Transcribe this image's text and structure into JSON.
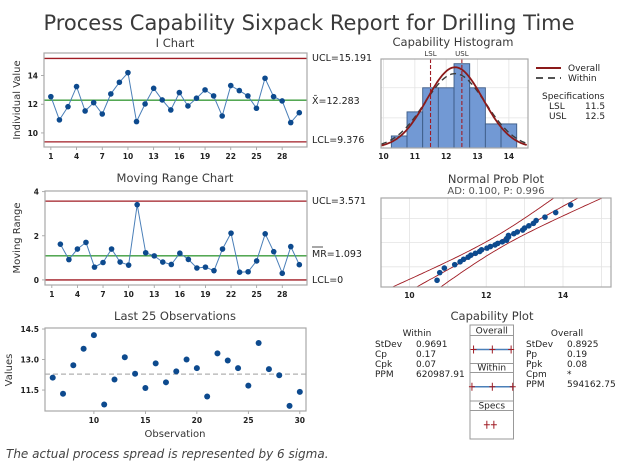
{
  "title": "Process Capability Sixpack Report for Drilling Time",
  "footnote": "The actual process spread is represented by 6 sigma.",
  "colors": {
    "point": "#0d4a8e",
    "connector": "#4a7fb8",
    "center_line": "#3b9b3b",
    "control_limit": "#a01c24",
    "hist_bar": "#7299d4",
    "hist_edge": "#3d5b86",
    "overall_curve": "#8b1a1a",
    "within_curve": "#3c3c3c",
    "spec_line": "#a01c24",
    "ref_line": "#b0b0b0"
  },
  "chart_data": [
    {
      "id": "i_chart",
      "type": "line",
      "title": "I Chart",
      "xlabel": "",
      "ylabel": "Individual Value",
      "x": [
        1,
        2,
        3,
        4,
        5,
        6,
        7,
        8,
        9,
        10,
        11,
        12,
        13,
        14,
        15,
        16,
        17,
        18,
        19,
        20,
        21,
        22,
        23,
        24,
        25,
        26,
        27,
        28,
        29,
        30
      ],
      "values": [
        12.53,
        10.91,
        11.83,
        13.23,
        11.53,
        12.11,
        11.32,
        12.72,
        13.53,
        14.2,
        10.79,
        12.02,
        13.11,
        12.3,
        11.6,
        12.81,
        11.88,
        12.42,
        13.0,
        12.58,
        11.18,
        13.3,
        12.95,
        12.58,
        11.72,
        13.81,
        12.53,
        12.23,
        10.72,
        11.41
      ],
      "xticks": [
        1,
        4,
        7,
        10,
        13,
        16,
        19,
        22,
        25,
        28
      ],
      "yticks": [
        10,
        12,
        14
      ],
      "xlim": [
        0.2,
        30.9
      ],
      "ylim": [
        9.02,
        15.57
      ],
      "ucl": 15.191,
      "center": 12.283,
      "lcl": 9.376,
      "ucl_label": "UCL=15.191",
      "center_label": "X̄=12.283",
      "lcl_label": "LCL=9.376"
    },
    {
      "id": "mr_chart",
      "type": "line",
      "title": "Moving Range Chart",
      "xlabel": "",
      "ylabel": "Moving Range",
      "x": [
        2,
        3,
        4,
        5,
        6,
        7,
        8,
        9,
        10,
        11,
        12,
        13,
        14,
        15,
        16,
        17,
        18,
        19,
        20,
        21,
        22,
        23,
        24,
        25,
        26,
        27,
        28,
        29,
        30
      ],
      "values": [
        1.62,
        0.92,
        1.4,
        1.7,
        0.58,
        0.79,
        1.4,
        0.81,
        0.67,
        3.41,
        1.23,
        1.09,
        0.81,
        0.7,
        1.21,
        0.93,
        0.54,
        0.58,
        0.42,
        1.4,
        2.12,
        0.35,
        0.37,
        0.86,
        2.09,
        1.28,
        0.3,
        1.51,
        0.69
      ],
      "xticks": [
        1,
        4,
        7,
        10,
        13,
        16,
        19,
        22,
        25,
        28
      ],
      "yticks": [
        0,
        2,
        4
      ],
      "xlim": [
        0.2,
        30.9
      ],
      "ylim": [
        -0.23,
        4.03
      ],
      "ucl": 3.571,
      "center": 1.093,
      "lcl": 0,
      "ucl_label": "UCL=3.571",
      "center_label": "MR=1.093",
      "lcl_label": "LCL=0"
    },
    {
      "id": "last25",
      "type": "scatter",
      "title": "Last 25 Observations",
      "xlabel": "Observation",
      "ylabel": "Values",
      "x": [
        6,
        7,
        8,
        9,
        10,
        11,
        12,
        13,
        14,
        15,
        16,
        17,
        18,
        19,
        20,
        21,
        22,
        23,
        24,
        25,
        26,
        27,
        28,
        29,
        30
      ],
      "values": [
        12.11,
        11.32,
        12.72,
        13.53,
        14.2,
        10.79,
        12.02,
        13.11,
        12.3,
        11.6,
        12.81,
        11.88,
        12.42,
        13.0,
        12.58,
        11.18,
        13.3,
        12.95,
        12.58,
        11.72,
        13.81,
        12.53,
        12.23,
        10.72,
        11.41
      ],
      "reference_line": 12.283,
      "xticks": [
        10,
        15,
        20,
        25,
        30
      ],
      "yticks": [
        11.5,
        13.0,
        14.5
      ],
      "ytick_labels": [
        "11.5",
        "13.0",
        "14.5"
      ],
      "xlim": [
        5.25,
        30.6
      ],
      "ylim": [
        10.47,
        14.55
      ]
    },
    {
      "id": "histogram",
      "type": "bar",
      "title": "Capability Histogram",
      "bin_edges": [
        10.25,
        10.75,
        11.25,
        11.75,
        12.25,
        12.75,
        13.25,
        13.75,
        14.25
      ],
      "counts": [
        1,
        3,
        5,
        5,
        7,
        5,
        2,
        2
      ],
      "xticks": [
        10,
        11,
        12,
        13,
        14
      ],
      "ygrid": [
        2.5,
        5
      ],
      "xlim": [
        9.92,
        14.61
      ],
      "ylim": [
        0,
        7.39
      ],
      "lsl": 11.5,
      "usl": 12.5,
      "lsl_label": "LSL",
      "usl_label": "USL",
      "mean": 12.283,
      "overall_sd": 0.8925,
      "within_sd": 0.9691,
      "n": 30,
      "legend": [
        {
          "name": "Overall",
          "style": "solid"
        },
        {
          "name": "Within",
          "style": "dashed"
        }
      ],
      "legend_position": "right",
      "specifications": {
        "heading": "Specifications",
        "rows": [
          {
            "label": "LSL",
            "value": "11.5"
          },
          {
            "label": "USL",
            "value": "12.5"
          }
        ]
      }
    },
    {
      "id": "normal_prob",
      "type": "scatter",
      "title": "Normal Prob Plot",
      "subtitle": "AD: 0.100, P: 0.996",
      "xticks": [
        10,
        12,
        14
      ],
      "xgrid": [
        10,
        11,
        12,
        13,
        14,
        15
      ],
      "ygrid_percent": [
        10,
        50,
        90
      ],
      "xlim": [
        9.26,
        15.25
      ],
      "zlim": [
        -2.35,
        2.36
      ],
      "mean": 12.283,
      "sd": 0.8925
    },
    {
      "id": "capability_plot",
      "type": "table",
      "title": "Capability Plot",
      "within": {
        "heading": "Within",
        "rows": [
          {
            "label": "StDev",
            "value": "0.9691"
          },
          {
            "label": "Cp",
            "value": "0.17"
          },
          {
            "label": "Cpk",
            "value": "0.07"
          },
          {
            "label": "PPM",
            "value": "620987.91"
          }
        ]
      },
      "overall": {
        "heading": "Overall",
        "rows": [
          {
            "label": "StDev",
            "value": "0.8925"
          },
          {
            "label": "Pp",
            "value": "0.19"
          },
          {
            "label": "Ppk",
            "value": "0.08"
          },
          {
            "label": "Cpm",
            "value": "*"
          },
          {
            "label": "PPM",
            "value": "594162.75"
          }
        ]
      },
      "panels": [
        {
          "label": "Overall",
          "interval": [
            9.606,
            12.283,
            14.961
          ]
        },
        {
          "label": "Within",
          "interval": [
            9.376,
            12.283,
            15.191
          ]
        },
        {
          "label": "Specs",
          "interval": [
            11.5,
            12.5
          ]
        }
      ],
      "scale_lim": [
        9.1,
        15.3
      ]
    }
  ]
}
